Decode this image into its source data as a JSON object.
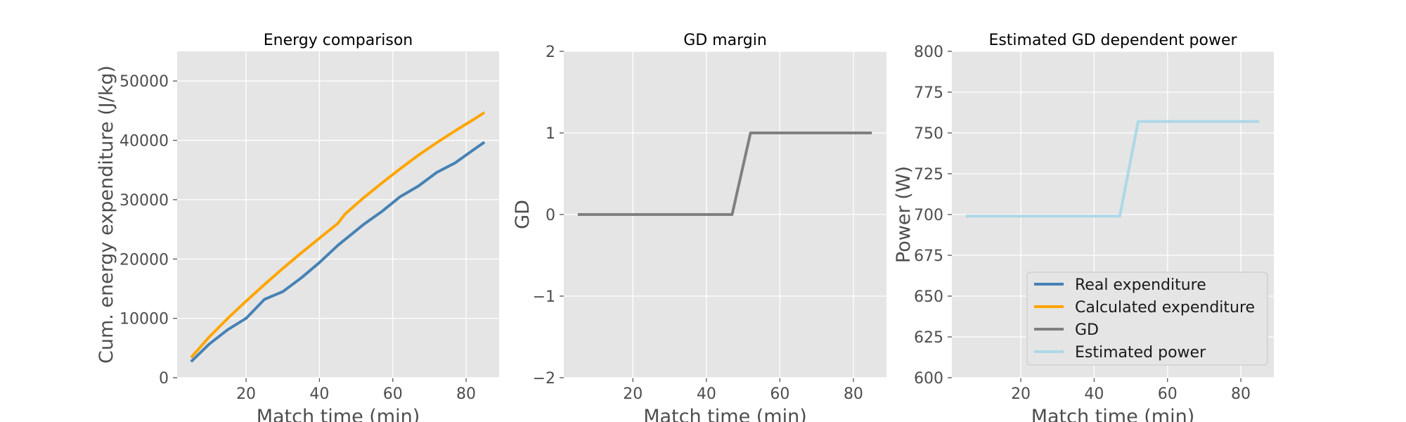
{
  "chart_data": [
    {
      "type": "line",
      "title": "Energy comparison",
      "xlabel": "Match time (min)",
      "ylabel": "Cum. energy expenditure (J/kg)",
      "xlim": [
        1.2,
        89
      ],
      "ylim": [
        0,
        55000
      ],
      "xticks": [
        20,
        40,
        60,
        80
      ],
      "yticks": [
        0,
        10000,
        20000,
        30000,
        40000,
        50000
      ],
      "ytick_labels": [
        "0",
        "10000",
        "20000",
        "30000",
        "40000",
        "50000"
      ],
      "grid": true,
      "series": [
        {
          "name": "Real expenditure",
          "color": "#4682b4",
          "x": [
            5,
            10,
            15,
            20,
            25,
            30,
            35,
            40,
            45,
            47,
            52,
            57,
            62,
            67,
            72,
            77,
            82,
            85
          ],
          "y": [
            2700,
            5700,
            8100,
            10000,
            13200,
            14500,
            16800,
            19400,
            22300,
            23300,
            25800,
            28000,
            30500,
            32300,
            34600,
            36200,
            38400,
            39700
          ]
        },
        {
          "name": "Calculated expenditure",
          "color": "#ffa500",
          "x": [
            5,
            10,
            15,
            20,
            25,
            30,
            35,
            40,
            45,
            47,
            52,
            57,
            62,
            67,
            72,
            77,
            82,
            85
          ],
          "y": [
            3400,
            6900,
            10000,
            12900,
            15700,
            18400,
            21000,
            23500,
            26000,
            27600,
            30300,
            32800,
            35200,
            37500,
            39600,
            41600,
            43500,
            44700
          ]
        }
      ]
    },
    {
      "type": "line",
      "title": "GD margin",
      "xlabel": "Match time (min)",
      "ylabel": "GD",
      "xlim": [
        1.2,
        89
      ],
      "ylim": [
        -2,
        2
      ],
      "xticks": [
        20,
        40,
        60,
        80
      ],
      "yticks": [
        -2,
        -1,
        0,
        1,
        2
      ],
      "ytick_labels": [
        "−2",
        "−1",
        "0",
        "1",
        "2"
      ],
      "grid": true,
      "series": [
        {
          "name": "GD",
          "color": "#808080",
          "x": [
            5,
            47,
            52,
            85
          ],
          "y": [
            0,
            0,
            1,
            1
          ]
        }
      ]
    },
    {
      "type": "line",
      "title": "Estimated GD dependent power",
      "xlabel": "Match time (min)",
      "ylabel": "Power (W)",
      "xlim": [
        1.2,
        89
      ],
      "ylim": [
        600,
        800
      ],
      "xticks": [
        20,
        40,
        60,
        80
      ],
      "yticks": [
        600,
        625,
        650,
        675,
        700,
        725,
        750,
        775,
        800
      ],
      "ytick_labels": [
        "600",
        "625",
        "650",
        "675",
        "700",
        "725",
        "750",
        "775",
        "800"
      ],
      "grid": true,
      "legend_position": "lower-right",
      "series": [
        {
          "name": "Estimated power",
          "color": "#add8e6",
          "x": [
            5,
            47,
            52,
            85
          ],
          "y": [
            699,
            699,
            757,
            757
          ]
        }
      ]
    }
  ],
  "legend": {
    "entries": [
      {
        "label": "Real expenditure",
        "color": "#4682b4"
      },
      {
        "label": "Calculated expenditure",
        "color": "#ffa500"
      },
      {
        "label": "GD",
        "color": "#808080"
      },
      {
        "label": "Estimated power",
        "color": "#add8e6"
      }
    ]
  }
}
